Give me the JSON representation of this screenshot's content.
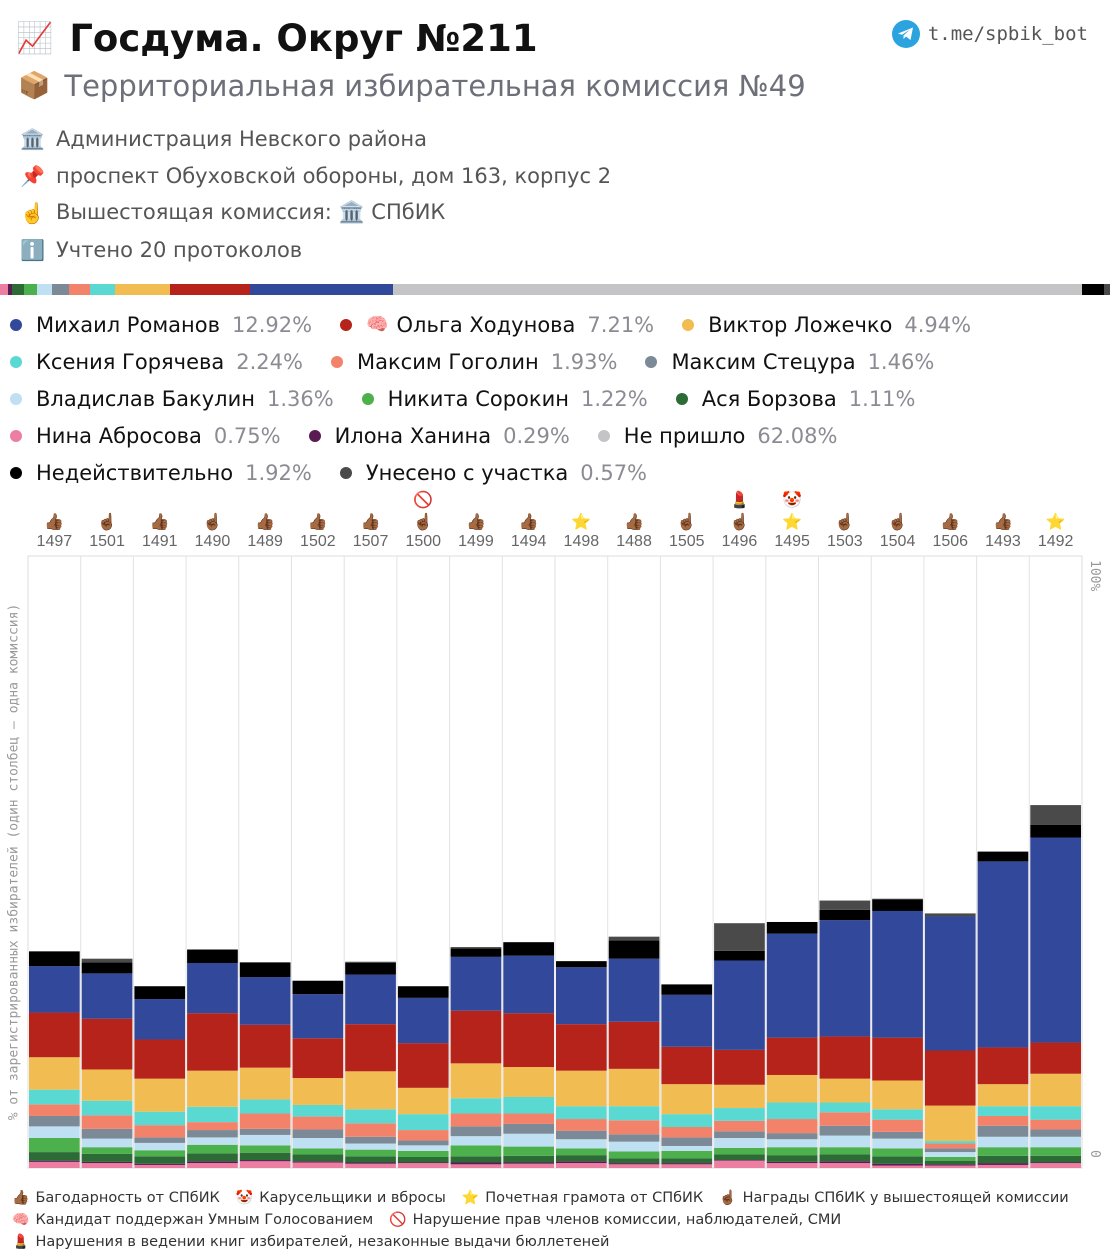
{
  "header": {
    "title_emoji": "📈",
    "title": "Госдума. Округ №211",
    "telegram": "t.me/spbik_bot",
    "subtitle_emoji": "📦",
    "subtitle": "Территориальная избирательная комиссия №49"
  },
  "info": [
    {
      "emoji": "🏛️",
      "text": "Администрация Невского района"
    },
    {
      "emoji": "📌",
      "text": "проспект Обуховской обороны, дом 163, корпус 2"
    },
    {
      "emoji": "☝️",
      "text": "Вышестоящая комиссия: 🏛️ СПбИК"
    },
    {
      "emoji": "ℹ️",
      "text": "Учтено 20 протоколов"
    }
  ],
  "colors": {
    "romanov": "#31489b",
    "khodunova": "#b5231a",
    "lozhechko": "#f1bc52",
    "goryacheva": "#5ad9d3",
    "gogolin": "#f2836a",
    "stetsura": "#7b8a96",
    "bakulin": "#bfe0f3",
    "sorokin": "#4cb04c",
    "borzova": "#2c6b36",
    "abrosova": "#ec7fa1",
    "khanina": "#5a1a52",
    "not_came": "#c4c4c6",
    "invalid": "#000000",
    "taken": "#4a4a4a"
  },
  "legend": [
    [
      {
        "key": "romanov",
        "emoji": "",
        "name": "Михаил Романов",
        "pct": "12.92%"
      },
      {
        "key": "khodunova",
        "emoji": "🧠",
        "name": "Ольга Ходунова",
        "pct": "7.21%"
      },
      {
        "key": "lozhechko",
        "emoji": "",
        "name": "Виктор Ложечко",
        "pct": "4.94%"
      }
    ],
    [
      {
        "key": "goryacheva",
        "emoji": "",
        "name": "Ксения Горячева",
        "pct": "2.24%"
      },
      {
        "key": "gogolin",
        "emoji": "",
        "name": "Максим Гоголин",
        "pct": "1.93%"
      },
      {
        "key": "stetsura",
        "emoji": "",
        "name": "Максим Стецура",
        "pct": "1.46%"
      }
    ],
    [
      {
        "key": "bakulin",
        "emoji": "",
        "name": "Владислав Бакулин",
        "pct": "1.36%"
      },
      {
        "key": "sorokin",
        "emoji": "",
        "name": "Никита Сорокин",
        "pct": "1.22%"
      },
      {
        "key": "borzova",
        "emoji": "",
        "name": "Ася Борзова",
        "pct": "1.11%"
      }
    ],
    [
      {
        "key": "abrosova",
        "emoji": "",
        "name": "Нина Абросова",
        "pct": "0.75%"
      },
      {
        "key": "khanina",
        "emoji": "",
        "name": "Илона Ханина",
        "pct": "0.29%"
      },
      {
        "key": "not_came",
        "emoji": "",
        "name": "Не пришло",
        "pct": "62.08%"
      }
    ],
    [
      {
        "key": "invalid",
        "emoji": "",
        "name": "Недействительно",
        "pct": "1.92%"
      },
      {
        "key": "taken",
        "emoji": "",
        "name": "Унесено с участка",
        "pct": "0.57%"
      }
    ]
  ],
  "progress": [
    {
      "key": "abrosova",
      "pct": 0.75
    },
    {
      "key": "khanina",
      "pct": 0.29
    },
    {
      "key": "borzova",
      "pct": 1.11
    },
    {
      "key": "sorokin",
      "pct": 1.22
    },
    {
      "key": "bakulin",
      "pct": 1.36
    },
    {
      "key": "stetsura",
      "pct": 1.46
    },
    {
      "key": "gogolin",
      "pct": 1.93
    },
    {
      "key": "goryacheva",
      "pct": 2.24
    },
    {
      "key": "lozhechko",
      "pct": 4.94
    },
    {
      "key": "khodunova",
      "pct": 7.21
    },
    {
      "key": "romanov",
      "pct": 12.92
    },
    {
      "key": "not_came",
      "pct": 62.08
    },
    {
      "key": "invalid",
      "pct": 1.92
    },
    {
      "key": "taken",
      "pct": 0.57
    }
  ],
  "chart_data": {
    "type": "bar",
    "stacked": true,
    "ylim": [
      0,
      100
    ],
    "ylabel": "% от зарегистрированных избирателей (один столбец – одна комиссия)",
    "ytick_top": "100%",
    "ytick_bottom": "0",
    "stack_order": [
      "abrosova",
      "khanina",
      "borzova",
      "sorokin",
      "bakulin",
      "stetsura",
      "gogolin",
      "goryacheva",
      "lozhechko",
      "khodunova",
      "romanov",
      "invalid",
      "taken"
    ],
    "categories": [
      "1497",
      "1501",
      "1491",
      "1490",
      "1489",
      "1502",
      "1507",
      "1500",
      "1499",
      "1494",
      "1498",
      "1488",
      "1505",
      "1496",
      "1495",
      "1503",
      "1504",
      "1506",
      "1493",
      "1492"
    ],
    "markers": [
      {
        "top": "",
        "bottom": "👍🏾"
      },
      {
        "top": "",
        "bottom": "☝🏾"
      },
      {
        "top": "",
        "bottom": "👍🏾"
      },
      {
        "top": "",
        "bottom": "☝🏾"
      },
      {
        "top": "",
        "bottom": "👍🏾"
      },
      {
        "top": "",
        "bottom": "👍🏾"
      },
      {
        "top": "",
        "bottom": "👍🏾"
      },
      {
        "top": "🚫",
        "bottom": "☝🏾"
      },
      {
        "top": "",
        "bottom": "👍🏾"
      },
      {
        "top": "",
        "bottom": "👍🏾"
      },
      {
        "top": "",
        "bottom": "⭐"
      },
      {
        "top": "",
        "bottom": "👍🏾"
      },
      {
        "top": "",
        "bottom": "☝🏾"
      },
      {
        "top": "💄",
        "bottom": "☝🏾"
      },
      {
        "top": "🤡",
        "bottom": "⭐"
      },
      {
        "top": "",
        "bottom": "☝🏾"
      },
      {
        "top": "",
        "bottom": "☝🏾"
      },
      {
        "top": "",
        "bottom": "👍🏾"
      },
      {
        "top": "",
        "bottom": "👍🏾"
      },
      {
        "top": "",
        "bottom": "⭐"
      }
    ],
    "series": [
      {
        "key": "abrosova",
        "values": [
          1.0,
          0.8,
          0.5,
          0.8,
          1.1,
          0.9,
          0.7,
          0.8,
          0.6,
          0.7,
          0.8,
          0.6,
          0.6,
          1.2,
          0.8,
          0.8,
          0.4,
          0.4,
          0.5,
          0.8
        ]
      },
      {
        "key": "khanina",
        "values": [
          0.2,
          0.2,
          0.2,
          0.3,
          0.2,
          0.2,
          0.2,
          0.1,
          0.3,
          0.2,
          0.3,
          0.2,
          0.2,
          0.1,
          0.2,
          0.3,
          0.3,
          0.2,
          0.3,
          0.1
        ]
      },
      {
        "key": "borzova",
        "values": [
          1.4,
          1.3,
          1.2,
          1.3,
          1.2,
          1.1,
          1.0,
          0.9,
          1.0,
          1.1,
          1.0,
          0.8,
          0.8,
          0.9,
          1.1,
          1.1,
          1.2,
          0.6,
          1.2,
          1.1
        ]
      },
      {
        "key": "sorokin",
        "values": [
          2.3,
          1.1,
          1.0,
          1.4,
          1.2,
          1.0,
          1.1,
          1.0,
          1.8,
          1.5,
          1.1,
          1.1,
          1.2,
          1.1,
          1.3,
          1.2,
          1.3,
          0.6,
          1.4,
          1.4
        ]
      },
      {
        "key": "bakulin",
        "values": [
          1.9,
          1.4,
          1.2,
          1.2,
          1.7,
          1.7,
          1.0,
          0.9,
          1.5,
          2.1,
          1.5,
          1.6,
          0.8,
          1.6,
          1.3,
          1.9,
          1.6,
          0.8,
          1.7,
          1.7
        ]
      },
      {
        "key": "stetsura",
        "values": [
          1.7,
          1.6,
          0.9,
          1.2,
          1.0,
          1.4,
          1.1,
          0.8,
          1.6,
          1.6,
          1.4,
          1.2,
          1.4,
          1.1,
          1.0,
          1.6,
          1.1,
          0.6,
          1.8,
          1.2
        ]
      },
      {
        "key": "gogolin",
        "values": [
          1.9,
          2.2,
          2.0,
          1.3,
          2.5,
          2.1,
          2.2,
          1.7,
          2.1,
          1.7,
          1.9,
          2.3,
          1.7,
          1.7,
          2.3,
          2.2,
          2.0,
          0.8,
          1.6,
          1.6
        ]
      },
      {
        "key": "goryacheva",
        "values": [
          2.4,
          2.4,
          2.2,
          2.5,
          2.3,
          1.9,
          2.3,
          2.6,
          2.5,
          2.7,
          2.1,
          2.3,
          2.1,
          2.1,
          2.7,
          1.6,
          1.7,
          0.4,
          1.6,
          2.2
        ]
      },
      {
        "key": "lozhechko",
        "values": [
          5.3,
          5.1,
          5.4,
          5.9,
          5.2,
          4.4,
          6.2,
          4.3,
          5.7,
          4.9,
          5.8,
          6.1,
          4.9,
          3.8,
          4.5,
          3.9,
          4.7,
          5.8,
          3.6,
          5.3
        ]
      },
      {
        "key": "khodunova",
        "values": [
          7.3,
          8.3,
          6.4,
          9.4,
          7.0,
          6.5,
          7.7,
          7.3,
          8.6,
          8.8,
          7.6,
          7.7,
          6.1,
          5.7,
          6.1,
          6.9,
          7.0,
          9.0,
          6.0,
          5.1
        ]
      },
      {
        "key": "romanov",
        "values": [
          7.6,
          7.4,
          6.6,
          8.2,
          7.8,
          7.2,
          8.1,
          7.4,
          8.8,
          9.4,
          9.3,
          10.3,
          8.5,
          14.6,
          17.0,
          19.0,
          20.7,
          21.9,
          30.4,
          33.5
        ]
      },
      {
        "key": "invalid",
        "values": [
          2.4,
          1.8,
          2.1,
          2.2,
          2.4,
          2.2,
          1.9,
          1.9,
          1.4,
          2.2,
          1.0,
          3.0,
          1.7,
          1.6,
          1.9,
          1.7,
          1.9,
          0.0,
          1.6,
          2.1
        ]
      },
      {
        "key": "taken",
        "values": [
          0.0,
          0.6,
          0.0,
          0.0,
          0.0,
          0.0,
          0.2,
          0.0,
          0.2,
          0.0,
          0.0,
          0.6,
          0.0,
          4.5,
          0.0,
          1.5,
          0.1,
          0.5,
          0.0,
          3.2
        ]
      }
    ]
  },
  "footer": [
    [
      {
        "emoji": "👍🏾",
        "text": "Багодарность от СПбИК"
      },
      {
        "emoji": "🤡",
        "text": "Карусельщики и вбросы"
      },
      {
        "emoji": "⭐",
        "text": "Почетная грамота от СПбИК"
      },
      {
        "emoji": "☝🏾",
        "text": "Награды СПбИК у вышестоящей комиссии"
      }
    ],
    [
      {
        "emoji": "🧠",
        "text": "Кандидат поддержан Умным Голосованием"
      },
      {
        "emoji": "🚫",
        "text": "Нарушение прав членов комиссии, наблюдателей, СМИ"
      }
    ],
    [
      {
        "emoji": "💄",
        "text": "Нарушения в ведении книг избирателей, незаконные выдачи бюллетеней"
      }
    ]
  ]
}
